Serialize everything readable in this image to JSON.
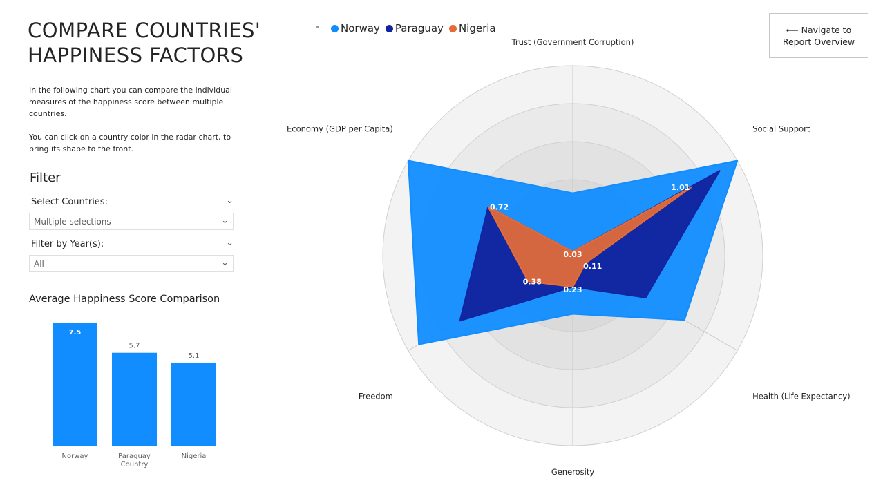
{
  "page": {
    "title_line1": "COMPARE COUNTRIES'",
    "title_line2": "HAPPINESS FACTORS",
    "intro_p1": "In the following chart you can compare the individual measures of the happiness score between multiple countries.",
    "intro_p2": "You can click on a country color in the radar chart, to bring its shape to the front."
  },
  "filter": {
    "heading": "Filter",
    "countries_label": "Select Countries:",
    "countries_value": "Multiple selections",
    "years_label": "Filter by Year(s):",
    "years_value": "All"
  },
  "nav_button": {
    "line1": "⟵ Navigate to",
    "line2": "Report Overview"
  },
  "legend": [
    {
      "name": "Norway",
      "color": "#118DFF"
    },
    {
      "name": "Paraguay",
      "color": "#12239E"
    },
    {
      "name": "Nigeria",
      "color": "#E66C37"
    }
  ],
  "chart_data": [
    {
      "type": "bar",
      "title": "Average Happiness Score Comparison",
      "categories": [
        "Norway",
        "Paraguay Country",
        "Nigeria"
      ],
      "category_lines": [
        [
          "Norway"
        ],
        [
          "Paraguay",
          "Country"
        ],
        [
          "Nigeria"
        ]
      ],
      "values": [
        7.5,
        5.7,
        5.1
      ],
      "value_labels": [
        "7.5",
        "5.7",
        "5.1"
      ],
      "ylim": [
        0,
        8.5
      ],
      "color": "#118DFF",
      "grid": false
    },
    {
      "type": "radar",
      "axes": [
        "Trust (Government Corruption)",
        "Social Support",
        "Health (Life Expectancy)",
        "Generosity",
        "Freedom",
        "Economy (GDP per Capita)"
      ],
      "rlim": [
        0,
        1.4
      ],
      "series": [
        {
          "name": "Norway",
          "color": "#118DFF",
          "values": [
            0.46,
            1.4,
            0.95,
            0.43,
            1.31,
            1.4
          ]
        },
        {
          "name": "Paraguay",
          "color": "#12239E",
          "values": [
            0.03,
            1.25,
            0.62,
            0.23,
            0.96,
            0.72
          ]
        },
        {
          "name": "Nigeria",
          "color": "#E66C37",
          "values": [
            0.03,
            1.01,
            0.11,
            0.23,
            0.38,
            0.72
          ]
        }
      ],
      "data_labels": {
        "axis_values": [
          "0.03",
          "1.01",
          "0.11",
          "0.23",
          "0.38",
          "0.72"
        ]
      }
    }
  ]
}
